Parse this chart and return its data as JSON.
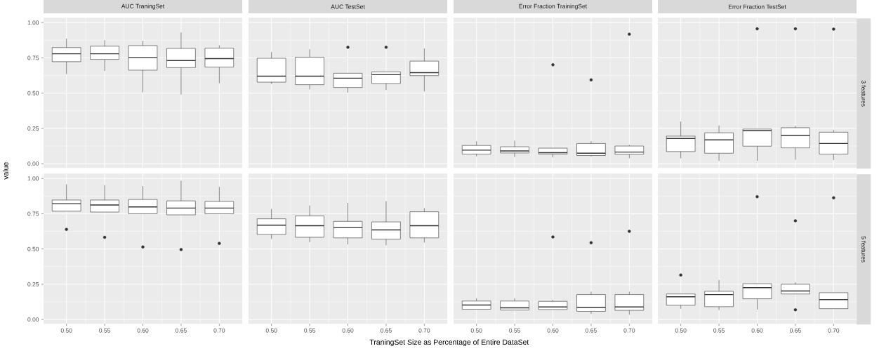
{
  "chart_data": [
    {
      "type": "box",
      "title": "AUC TraningSet",
      "ylabel": "value",
      "categories": [
        "0.50",
        "0.55",
        "0.60",
        "0.65",
        "0.70"
      ],
      "ylim": [
        -0.03,
        1.035
      ],
      "yticks": [
        {
          "value": 0,
          "label": "0.00"
        },
        {
          "value": 0.25,
          "label": "0.25"
        },
        {
          "value": 0.5,
          "label": "0.50"
        },
        {
          "value": 0.75,
          "label": "0.75"
        },
        {
          "value": 1,
          "label": "1.00"
        }
      ],
      "grid": true,
      "tick_labels": "y",
      "boxes": [
        {
          "low": 0.635,
          "q1": 0.723,
          "median": 0.779,
          "q3": 0.823,
          "high": 0.886
        },
        {
          "low": 0.657,
          "q1": 0.739,
          "median": 0.779,
          "q3": 0.833,
          "high": 0.876
        },
        {
          "low": 0.506,
          "q1": 0.663,
          "median": 0.753,
          "q3": 0.837,
          "high": 0.87
        },
        {
          "low": 0.49,
          "q1": 0.681,
          "median": 0.731,
          "q3": 0.817,
          "high": 0.93
        },
        {
          "low": 0.57,
          "q1": 0.685,
          "median": 0.745,
          "q3": 0.819,
          "high": 0.839
        }
      ]
    },
    {
      "type": "box",
      "title": "AUC TestSet",
      "categories": [
        "0.50",
        "0.55",
        "0.60",
        "0.65",
        "0.70"
      ],
      "ylim": [
        -0.03,
        1.035
      ],
      "yticks": [
        0,
        0.25,
        0.5,
        0.75,
        1
      ],
      "grid": true,
      "tick_labels": false,
      "boxes": [
        {
          "low": 0.566,
          "q1": 0.578,
          "median": 0.62,
          "q3": 0.747,
          "high": 0.791
        },
        {
          "low": 0.526,
          "q1": 0.56,
          "median": 0.62,
          "q3": 0.755,
          "high": 0.811
        },
        {
          "low": 0.504,
          "q1": 0.54,
          "median": 0.606,
          "q3": 0.641,
          "high": 0.641,
          "outliers": [
            0.825
          ]
        },
        {
          "low": 0.522,
          "q1": 0.568,
          "median": 0.631,
          "q3": 0.651,
          "high": 0.651,
          "outliers": [
            0.825
          ]
        },
        {
          "low": 0.512,
          "q1": 0.624,
          "median": 0.645,
          "q3": 0.727,
          "high": 0.817
        }
      ]
    },
    {
      "type": "box",
      "title": "Error Fraction TrainingSet",
      "categories": [
        "0.50",
        "0.55",
        "0.60",
        "0.65",
        "0.70"
      ],
      "ylim": [
        -0.03,
        1.035
      ],
      "yticks": [
        0,
        0.25,
        0.5,
        0.75,
        1
      ],
      "grid": true,
      "tick_labels": false,
      "boxes": [
        {
          "low": 0.052,
          "q1": 0.068,
          "median": 0.096,
          "q3": 0.129,
          "high": 0.159
        },
        {
          "low": 0.046,
          "q1": 0.076,
          "median": 0.09,
          "q3": 0.12,
          "high": 0.163
        },
        {
          "low": 0.044,
          "q1": 0.068,
          "median": 0.078,
          "q3": 0.11,
          "high": 0.11,
          "outliers": [
            0.701
          ]
        },
        {
          "low": 0.05,
          "q1": 0.058,
          "median": 0.074,
          "q3": 0.143,
          "high": 0.159,
          "outliers": [
            0.594
          ]
        },
        {
          "low": 0.038,
          "q1": 0.066,
          "median": 0.082,
          "q3": 0.125,
          "high": 0.133,
          "outliers": [
            0.918
          ]
        }
      ]
    },
    {
      "type": "box",
      "title": "Error Fraction TestSet",
      "annotations": [
        "3 features"
      ],
      "categories": [
        "0.50",
        "0.55",
        "0.60",
        "0.65",
        "0.70"
      ],
      "ylim": [
        -0.03,
        1.035
      ],
      "yticks": [
        0,
        0.25,
        0.5,
        0.75,
        1
      ],
      "grid": true,
      "tick_labels": false,
      "boxes": [
        {
          "low": 0.038,
          "q1": 0.086,
          "median": 0.179,
          "q3": 0.195,
          "high": 0.299
        },
        {
          "low": 0.02,
          "q1": 0.074,
          "median": 0.169,
          "q3": 0.219,
          "high": 0.271
        },
        {
          "low": 0.02,
          "q1": 0.124,
          "median": 0.235,
          "q3": 0.245,
          "high": 0.245,
          "outliers": [
            0.956
          ]
        },
        {
          "low": 0.028,
          "q1": 0.112,
          "median": 0.201,
          "q3": 0.255,
          "high": 0.267,
          "outliers": [
            0.956
          ]
        },
        {
          "low": 0.026,
          "q1": 0.068,
          "median": 0.143,
          "q3": 0.223,
          "high": 0.239,
          "outliers": [
            0.954
          ]
        }
      ]
    },
    {
      "type": "box",
      "categories": [
        "0.50",
        "0.55",
        "0.60",
        "0.65",
        "0.70"
      ],
      "ylim": [
        -0.03,
        1.035
      ],
      "yticks": [
        {
          "value": 0,
          "label": "0.00"
        },
        {
          "value": 0.25,
          "label": "0.25"
        },
        {
          "value": 0.5,
          "label": "0.50"
        },
        {
          "value": 0.75,
          "label": "0.75"
        },
        {
          "value": 1,
          "label": "1.00"
        }
      ],
      "grid": true,
      "boxes": [
        {
          "low": 0.768,
          "q1": 0.768,
          "median": 0.821,
          "q3": 0.847,
          "high": 0.958,
          "outliers": [
            0.639
          ]
        },
        {
          "low": 0.762,
          "q1": 0.762,
          "median": 0.812,
          "q3": 0.847,
          "high": 0.952,
          "outliers": [
            0.583
          ]
        },
        {
          "low": 0.75,
          "q1": 0.75,
          "median": 0.798,
          "q3": 0.851,
          "high": 0.946,
          "outliers": [
            0.514
          ]
        },
        {
          "low": 0.742,
          "q1": 0.742,
          "median": 0.79,
          "q3": 0.841,
          "high": 0.984,
          "outliers": [
            0.496
          ]
        },
        {
          "low": 0.75,
          "q1": 0.75,
          "median": 0.79,
          "q3": 0.837,
          "high": 0.94,
          "outliers": [
            0.54
          ]
        }
      ]
    },
    {
      "type": "box",
      "xlabel": "TraningSet Size as Percentage of Entire DataSet",
      "categories": [
        "0.50",
        "0.55",
        "0.60",
        "0.65",
        "0.70"
      ],
      "ylim": [
        -0.03,
        1.035
      ],
      "yticks": [
        0,
        0.25,
        0.5,
        0.75,
        1
      ],
      "grid": true,
      "tick_labels": "x",
      "boxes": [
        {
          "low": 0.571,
          "q1": 0.603,
          "median": 0.669,
          "q3": 0.714,
          "high": 0.784
        },
        {
          "low": 0.548,
          "q1": 0.583,
          "median": 0.665,
          "q3": 0.734,
          "high": 0.808
        },
        {
          "low": 0.532,
          "q1": 0.579,
          "median": 0.651,
          "q3": 0.696,
          "high": 0.827
        },
        {
          "low": 0.526,
          "q1": 0.569,
          "median": 0.635,
          "q3": 0.692,
          "high": 0.839
        },
        {
          "low": 0.546,
          "q1": 0.579,
          "median": 0.665,
          "q3": 0.764,
          "high": 0.79
        }
      ]
    },
    {
      "type": "box",
      "categories": [
        "0.50",
        "0.55",
        "0.60",
        "0.65",
        "0.70"
      ],
      "ylim": [
        -0.03,
        1.035
      ],
      "yticks": [
        0,
        0.25,
        0.5,
        0.75,
        1
      ],
      "grid": true,
      "tick_labels": "x",
      "boxes": [
        {
          "low": 0.071,
          "q1": 0.073,
          "median": 0.103,
          "q3": 0.131,
          "high": 0.151
        },
        {
          "low": 0.067,
          "q1": 0.067,
          "median": 0.083,
          "q3": 0.131,
          "high": 0.151
        },
        {
          "low": 0.071,
          "q1": 0.071,
          "median": 0.089,
          "q3": 0.129,
          "high": 0.139,
          "outliers": [
            0.585
          ]
        },
        {
          "low": 0.04,
          "q1": 0.058,
          "median": 0.085,
          "q3": 0.177,
          "high": 0.198,
          "outliers": [
            0.544
          ]
        },
        {
          "low": 0.034,
          "q1": 0.065,
          "median": 0.089,
          "q3": 0.177,
          "high": 0.198,
          "outliers": [
            0.625
          ]
        }
      ]
    },
    {
      "type": "box",
      "annotations": [
        "5 features"
      ],
      "categories": [
        "0.50",
        "0.55",
        "0.60",
        "0.65",
        "0.70"
      ],
      "ylim": [
        -0.03,
        1.035
      ],
      "yticks": [
        0,
        0.25,
        0.5,
        0.75,
        1
      ],
      "grid": true,
      "tick_labels": "x",
      "boxes": [
        {
          "low": 0.077,
          "q1": 0.101,
          "median": 0.161,
          "q3": 0.181,
          "high": 0.181,
          "outliers": [
            0.315
          ]
        },
        {
          "low": 0.067,
          "q1": 0.091,
          "median": 0.177,
          "q3": 0.2,
          "high": 0.28
        },
        {
          "low": 0.071,
          "q1": 0.147,
          "median": 0.226,
          "q3": 0.254,
          "high": 0.254,
          "outliers": [
            0.871
          ]
        },
        {
          "low": 0.181,
          "q1": 0.181,
          "median": 0.202,
          "q3": 0.25,
          "high": 0.264,
          "outliers": [
            0.7,
            0.069
          ]
        },
        {
          "low": 0.077,
          "q1": 0.077,
          "median": 0.141,
          "q3": 0.19,
          "high": 0.19,
          "outliers": [
            0.863
          ]
        }
      ]
    }
  ]
}
